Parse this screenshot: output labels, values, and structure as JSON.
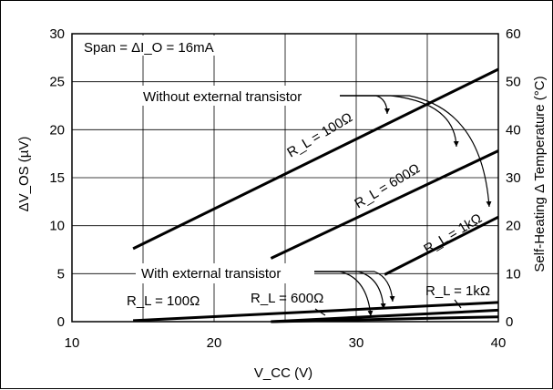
{
  "chart_data": {
    "type": "line",
    "title": "",
    "xlabel": "V_CC (V)",
    "ylabel": "ΔV_OS (µV)",
    "y2label": "Self-Heating Δ Temperature (°C)",
    "xlim": [
      10,
      40
    ],
    "ylim": [
      0,
      30
    ],
    "y2lim": [
      0,
      60
    ],
    "x_ticks": [
      "10",
      "20",
      "30",
      "40"
    ],
    "y_ticks": [
      "0",
      "5",
      "10",
      "15",
      "20",
      "25",
      "30"
    ],
    "y2_ticks": [
      "0",
      "10",
      "20",
      "30",
      "40",
      "50",
      "60"
    ],
    "grid": true,
    "annotations": {
      "span": "Span = ΔI_O = 16mA",
      "without": "Without external transistor",
      "with": "With external transistor"
    },
    "series": [
      {
        "group": "without",
        "label": "R_L = 100Ω",
        "x": [
          14.3,
          40
        ],
        "y": [
          7.6,
          26.3
        ]
      },
      {
        "group": "without",
        "label": "R_L = 600Ω",
        "x": [
          24,
          40
        ],
        "y": [
          6.6,
          17.8
        ]
      },
      {
        "group": "without",
        "label": "R_L = 1kΩ",
        "x": [
          32,
          40
        ],
        "y": [
          4.9,
          10.9
        ]
      },
      {
        "group": "with",
        "label": "R_L = 100Ω",
        "x": [
          14.3,
          40
        ],
        "y": [
          0.1,
          2.0
        ]
      },
      {
        "group": "with",
        "label": "R_L = 600Ω",
        "x": [
          24,
          40
        ],
        "y": [
          0,
          1.2
        ]
      },
      {
        "group": "with",
        "label": "R_L = 1kΩ",
        "x": [
          24,
          40
        ],
        "y": [
          0,
          0.5
        ]
      }
    ]
  }
}
